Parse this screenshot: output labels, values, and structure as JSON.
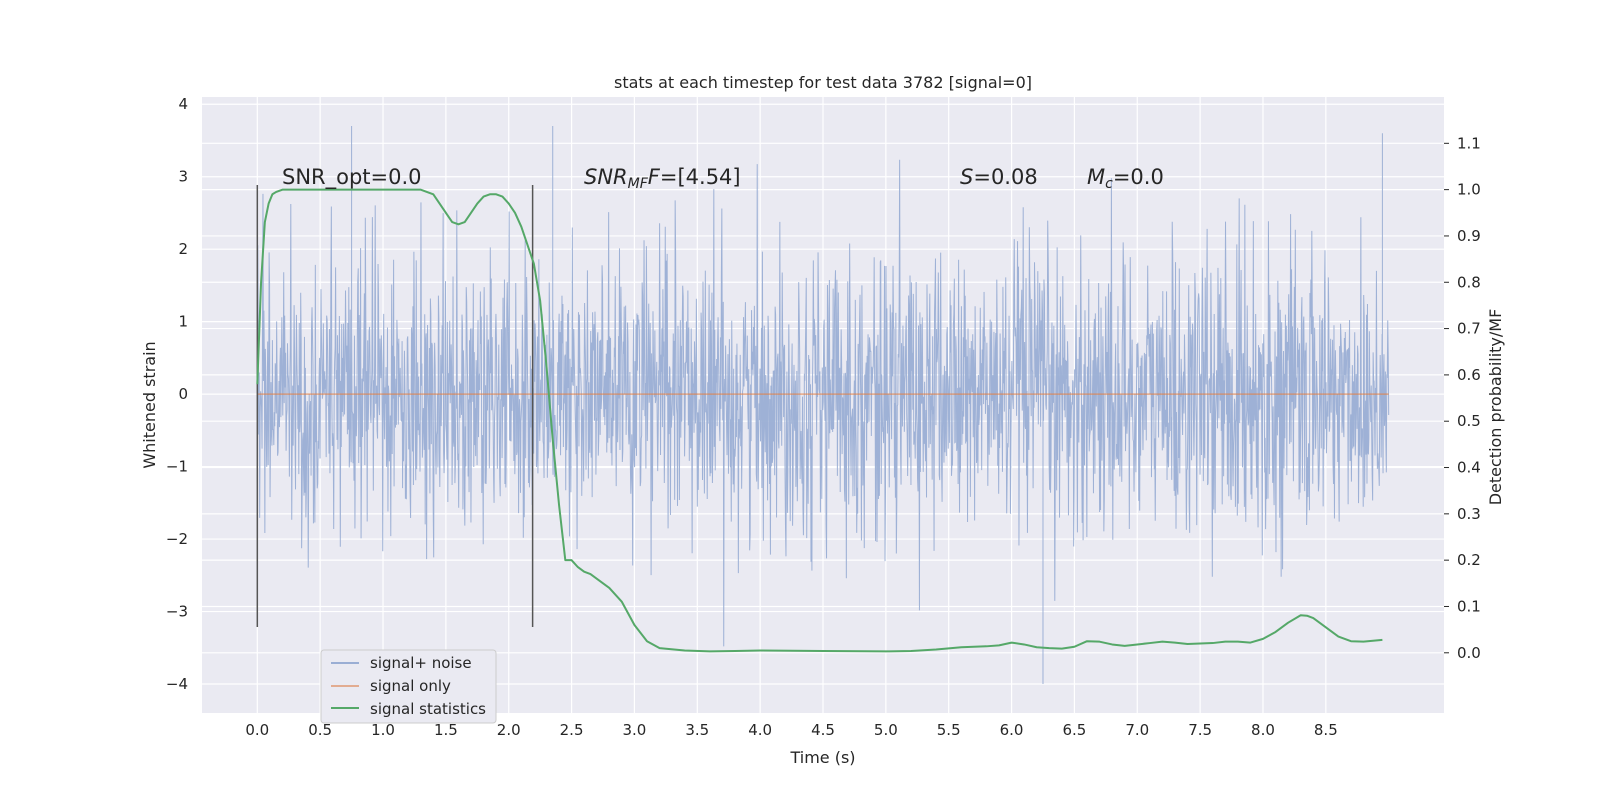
{
  "chart_data": {
    "type": "line",
    "title": "stats at each timestep for test data 3782 [signal=0]",
    "xlabel": "Time (s)",
    "ylabel": "Whitened strain",
    "y2label": "Detection probability/MF",
    "xlim": [
      -0.44,
      9.44
    ],
    "ylim": [
      -4.4,
      4.1
    ],
    "y2lim": [
      -0.13,
      1.2
    ],
    "xticks": [
      "0.0",
      "0.5",
      "1.0",
      "1.5",
      "2.0",
      "2.5",
      "3.0",
      "3.5",
      "4.0",
      "4.5",
      "5.0",
      "5.5",
      "6.0",
      "6.5",
      "7.0",
      "7.5",
      "8.0",
      "8.5"
    ],
    "yticks": [
      "4",
      "3",
      "2",
      "1",
      "0",
      "−1",
      "−2",
      "−3",
      "−4"
    ],
    "y2ticks": [
      "1.1",
      "1.0",
      "0.9",
      "0.8",
      "0.7",
      "0.6",
      "0.5",
      "0.4",
      "0.3",
      "0.2",
      "0.1",
      "0.0"
    ],
    "grid": true,
    "legend_position": "lower-left",
    "series": [
      {
        "name": "signal+ noise",
        "color": "#9aaed4",
        "kind": "noise-band",
        "x_range": [
          0.0,
          9.0
        ],
        "typical_band": [
          -1.5,
          1.6
        ],
        "peak_range": [
          -4.0,
          3.7
        ],
        "notable_peaks": [
          {
            "x": 0.75,
            "y": 3.7
          },
          {
            "x": 2.35,
            "y": 3.7
          },
          {
            "x": 6.25,
            "y": -4.0
          },
          {
            "x": 8.95,
            "y": 3.6
          }
        ]
      },
      {
        "name": "signal only",
        "color": "#dd8452",
        "kind": "line",
        "x": [
          0.0,
          9.0
        ],
        "y": [
          0.0,
          0.0
        ]
      },
      {
        "name": "signal statistics",
        "color": "#55a868",
        "kind": "line",
        "axis": "right",
        "x": [
          0.0,
          0.03,
          0.06,
          0.09,
          0.12,
          0.15,
          0.2,
          0.3,
          0.5,
          0.8,
          1.0,
          1.2,
          1.3,
          1.4,
          1.45,
          1.5,
          1.55,
          1.6,
          1.65,
          1.7,
          1.75,
          1.8,
          1.85,
          1.9,
          1.95,
          2.0,
          2.05,
          2.1,
          2.15,
          2.2,
          2.25,
          2.3,
          2.35,
          2.4,
          2.45,
          2.5,
          2.55,
          2.6,
          2.65,
          2.7,
          2.8,
          2.9,
          3.0,
          3.1,
          3.2,
          3.4,
          3.6,
          3.8,
          4.0,
          4.5,
          5.0,
          5.2,
          5.4,
          5.6,
          5.7,
          5.8,
          5.9,
          6.0,
          6.1,
          6.2,
          6.3,
          6.4,
          6.5,
          6.6,
          6.7,
          6.8,
          6.9,
          7.0,
          7.1,
          7.2,
          7.3,
          7.4,
          7.5,
          7.6,
          7.7,
          7.8,
          7.9,
          8.0,
          8.1,
          8.2,
          8.3,
          8.35,
          8.4,
          8.5,
          8.6,
          8.7,
          8.8,
          8.95
        ],
        "y": [
          0.58,
          0.8,
          0.93,
          0.97,
          0.99,
          0.995,
          1.0,
          1.0,
          1.0,
          1.0,
          1.0,
          1.0,
          1.0,
          0.99,
          0.97,
          0.95,
          0.93,
          0.925,
          0.93,
          0.95,
          0.97,
          0.985,
          0.99,
          0.99,
          0.985,
          0.97,
          0.95,
          0.92,
          0.88,
          0.84,
          0.76,
          0.62,
          0.46,
          0.32,
          0.2,
          0.2,
          0.185,
          0.175,
          0.17,
          0.16,
          0.14,
          0.11,
          0.06,
          0.025,
          0.01,
          0.005,
          0.003,
          0.004,
          0.005,
          0.004,
          0.003,
          0.004,
          0.007,
          0.012,
          0.013,
          0.014,
          0.016,
          0.022,
          0.018,
          0.012,
          0.01,
          0.009,
          0.013,
          0.025,
          0.024,
          0.018,
          0.015,
          0.018,
          0.021,
          0.024,
          0.022,
          0.019,
          0.02,
          0.021,
          0.024,
          0.024,
          0.022,
          0.03,
          0.045,
          0.065,
          0.081,
          0.08,
          0.075,
          0.055,
          0.035,
          0.025,
          0.024,
          0.028
        ]
      }
    ],
    "vlines": [
      0.0,
      2.19
    ],
    "annotations": {
      "snr_opt": "SNR_opt=0.0",
      "snr_mf_sym": "SNR",
      "snr_mf_sub": "MF",
      "snr_mf_sym2": "F",
      "snr_mf_val": "=[4.54]",
      "s_sym": "S",
      "s_val": "=0.08",
      "mc_sym": "M",
      "mc_sub": "c",
      "mc_val": "=0.0"
    }
  }
}
